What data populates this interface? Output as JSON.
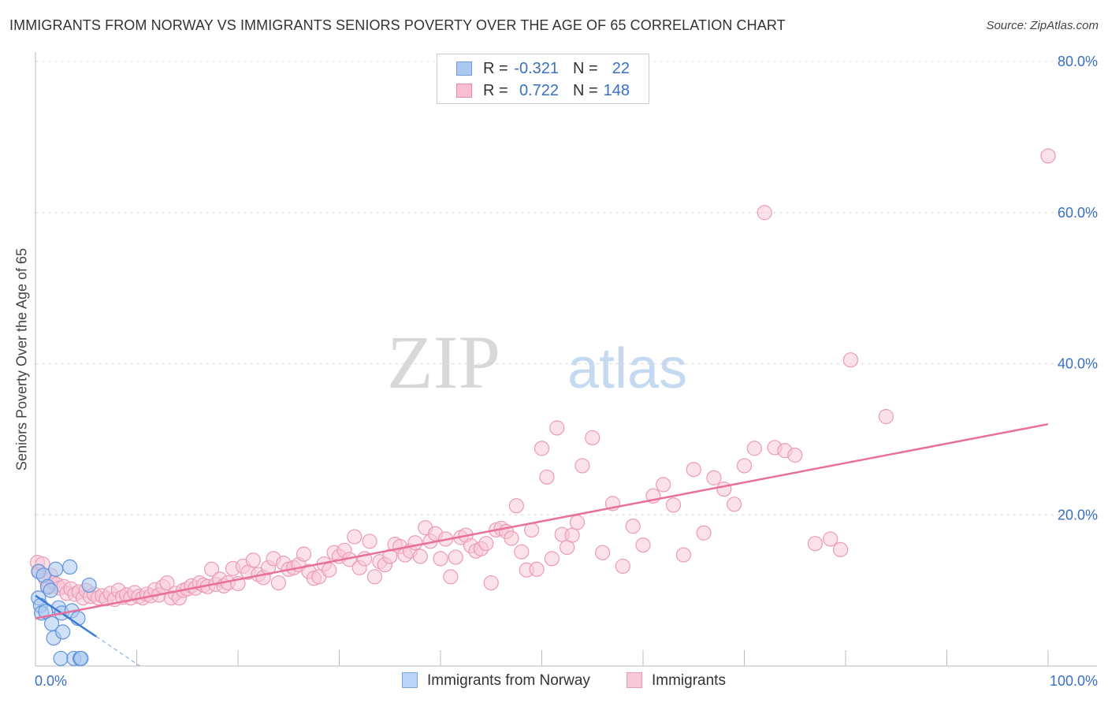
{
  "title": "IMMIGRANTS FROM NORWAY VS IMMIGRANTS SENIORS POVERTY OVER THE AGE OF 65 CORRELATION CHART",
  "source": "Source: ZipAtlas.com",
  "watermark": {
    "zip": "ZIP",
    "atlas": "atlas"
  },
  "stats": [
    {
      "r_label": "R =",
      "r": "-0.321",
      "n_label": "N =",
      "n": "22",
      "color": "#aac8f0",
      "border": "#6f9de0"
    },
    {
      "r_label": "R =",
      "r": "0.722",
      "n_label": "N =",
      "n": "148",
      "color": "#f7bfd0",
      "border": "#e98aab"
    }
  ],
  "legend": [
    {
      "label": "Immigrants from Norway",
      "color": "#bcd5f6",
      "border": "#7aa5e0"
    },
    {
      "label": "Immigrants",
      "color": "#f8c8d6",
      "border": "#e99ab4"
    }
  ],
  "chart_data": {
    "type": "scatter",
    "title": "IMMIGRANTS FROM NORWAY VS IMMIGRANTS SENIORS POVERTY OVER THE AGE OF 65 CORRELATION CHART",
    "xlabel": "",
    "ylabel": "Seniors Poverty Over the Age of 65",
    "xlim": [
      0,
      100
    ],
    "ylim": [
      0,
      80
    ],
    "x_tick_labels": [
      {
        "value": 0,
        "label": "0.0%"
      },
      {
        "value": 100,
        "label": "100.0%"
      }
    ],
    "y_tick_labels": [
      {
        "value": 20,
        "label": "20.0%"
      },
      {
        "value": 40,
        "label": "40.0%"
      },
      {
        "value": 60,
        "label": "60.0%"
      },
      {
        "value": 80,
        "label": "80.0%"
      }
    ],
    "grid": true,
    "series": [
      {
        "name": "Immigrants from Norway",
        "color": "#aac8f0",
        "stroke": "#5f93dc",
        "x": [
          0.3,
          0.3,
          0.5,
          0.6,
          0.8,
          1.0,
          1.2,
          1.5,
          1.6,
          1.8,
          2.0,
          2.3,
          2.5,
          2.6,
          2.7,
          3.4,
          3.6,
          3.8,
          4.2,
          4.4,
          4.5,
          5.3
        ],
        "y": [
          12.5,
          9.0,
          8.0,
          7.0,
          12.0,
          7.2,
          10.5,
          10.0,
          5.6,
          3.7,
          12.8,
          7.7,
          1.0,
          7.0,
          4.5,
          13.1,
          7.3,
          1.0,
          6.3,
          1.0,
          1.0,
          10.7
        ]
      },
      {
        "name": "Immigrants",
        "color": "#f8c8d6",
        "stroke": "#eb9bb6",
        "x": [
          0.2,
          0.4,
          0.7,
          1.0,
          1.3,
          1.5,
          1.8,
          2.1,
          2.4,
          2.8,
          3.1,
          3.5,
          3.9,
          4.3,
          4.7,
          5.0,
          5.4,
          5.8,
          6.2,
          6.6,
          7.0,
          7.4,
          7.8,
          8.2,
          8.6,
          9.0,
          9.4,
          9.8,
          10.2,
          10.6,
          11.0,
          11.4,
          11.8,
          12.2,
          12.6,
          13.0,
          13.4,
          13.8,
          14.2,
          14.6,
          15.0,
          15.4,
          15.8,
          16.2,
          16.6,
          17.0,
          17.4,
          17.8,
          18.2,
          18.6,
          19.0,
          19.5,
          20.0,
          20.5,
          21.0,
          21.5,
          22.0,
          22.5,
          23.0,
          23.5,
          24.0,
          24.5,
          25.0,
          25.5,
          26.0,
          26.5,
          27.0,
          27.5,
          28.0,
          28.5,
          29.0,
          29.5,
          30.0,
          30.5,
          31.0,
          31.5,
          32.0,
          32.5,
          33.0,
          33.5,
          34.0,
          34.5,
          35.0,
          35.5,
          36.0,
          36.5,
          37.0,
          37.5,
          38.0,
          38.5,
          39.0,
          39.5,
          40.0,
          40.5,
          41.0,
          41.5,
          42.0,
          42.5,
          43.0,
          43.5,
          44.0,
          44.5,
          45.0,
          45.5,
          46.0,
          46.5,
          47.0,
          47.5,
          48.0,
          48.5,
          49.0,
          49.5,
          50.0,
          50.5,
          51.0,
          51.5,
          52.0,
          52.5,
          53.0,
          53.5,
          54.0,
          55.0,
          56.0,
          57.0,
          58.0,
          59.0,
          60.0,
          61.0,
          62.0,
          63.0,
          64.0,
          65.0,
          66.0,
          67.0,
          68.0,
          69.0,
          70.0,
          71.0,
          72.0,
          73.0,
          74.0,
          75.0,
          77.0,
          78.5,
          79.5,
          80.5,
          84.0,
          100.0
        ],
        "y": [
          13.7,
          12.5,
          13.5,
          11.5,
          10.4,
          12.0,
          11.0,
          10.8,
          10.3,
          10.5,
          9.6,
          10.2,
          9.5,
          9.8,
          9.0,
          10.0,
          9.2,
          9.5,
          9.0,
          9.3,
          8.9,
          9.6,
          8.8,
          10.0,
          9.1,
          9.4,
          9.0,
          9.7,
          9.2,
          9.0,
          9.5,
          9.3,
          10.1,
          9.4,
          10.5,
          11.0,
          9.0,
          9.6,
          9.0,
          10.0,
          10.2,
          10.6,
          10.3,
          11.0,
          10.7,
          10.5,
          12.8,
          10.8,
          11.5,
          10.6,
          11.0,
          12.9,
          10.9,
          13.2,
          12.4,
          14.0,
          12.1,
          11.7,
          13.0,
          14.2,
          11.0,
          13.6,
          12.8,
          13.0,
          13.4,
          14.8,
          12.5,
          11.6,
          11.8,
          13.5,
          12.7,
          15.0,
          14.5,
          15.3,
          14.1,
          17.1,
          13.0,
          14.2,
          16.5,
          11.8,
          13.8,
          13.4,
          14.5,
          16.1,
          15.8,
          14.7,
          15.2,
          16.3,
          14.5,
          18.3,
          16.5,
          17.5,
          14.2,
          16.8,
          11.8,
          14.4,
          17.0,
          17.3,
          15.9,
          15.2,
          15.5,
          16.2,
          11.0,
          18.0,
          18.2,
          17.8,
          16.9,
          21.2,
          15.1,
          12.7,
          18.0,
          12.8,
          28.8,
          25.0,
          14.2,
          31.5,
          17.4,
          15.7,
          17.3,
          19.0,
          26.5,
          30.2,
          15.0,
          21.5,
          13.2,
          18.5,
          16.0,
          22.5,
          24.0,
          21.3,
          14.7,
          26.0,
          17.6,
          24.9,
          23.4,
          21.4,
          26.5,
          28.8,
          60.0,
          28.9,
          28.5,
          27.9,
          16.2,
          16.8,
          15.4,
          40.5,
          33.0,
          67.5
        ]
      }
    ],
    "trendlines": [
      {
        "series": "Immigrants from Norway",
        "x": [
          0,
          6
        ],
        "y": [
          9.3,
          3.9
        ],
        "dashed_extension_x": [
          6,
          10.3
        ],
        "dashed_extension_y": [
          3.9,
          0
        ],
        "color": "#3b7bd4"
      },
      {
        "series": "Immigrants",
        "x": [
          0,
          100
        ],
        "y": [
          6.3,
          32.0
        ],
        "color": "#e8709a"
      }
    ]
  }
}
